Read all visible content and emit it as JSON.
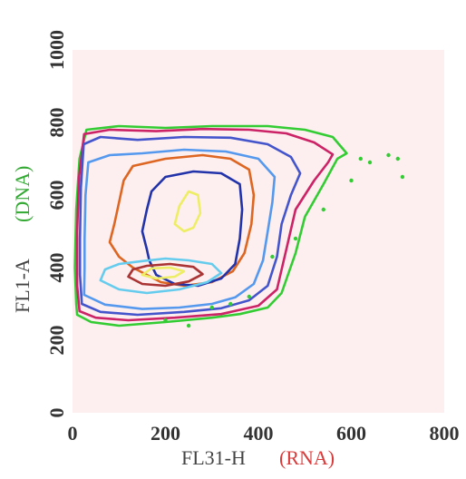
{
  "chart_data": {
    "type": "contour",
    "xlabel": "FL31-H",
    "xlabel_paren": "(RNA)",
    "ylabel": "FL1-A",
    "ylabel_paren": "(DNA)",
    "xlim": [
      0,
      800
    ],
    "ylim": [
      0,
      1000
    ],
    "xticks": [
      "0",
      "200",
      "400",
      "600",
      "800"
    ],
    "yticks": [
      "0",
      "200",
      "400",
      "600",
      "800",
      "1000"
    ],
    "background": "#fdeff0",
    "grid": false,
    "series": [
      {
        "color": "#33cc33",
        "points": [
          [
            10,
            270
          ],
          [
            40,
            250
          ],
          [
            100,
            240
          ],
          [
            200,
            250
          ],
          [
            300,
            262
          ],
          [
            360,
            272
          ],
          [
            420,
            290
          ],
          [
            450,
            330
          ],
          [
            480,
            440
          ],
          [
            500,
            540
          ],
          [
            540,
            630
          ],
          [
            570,
            700
          ],
          [
            590,
            715
          ],
          [
            560,
            760
          ],
          [
            500,
            780
          ],
          [
            420,
            790
          ],
          [
            300,
            790
          ],
          [
            200,
            785
          ],
          [
            100,
            790
          ],
          [
            30,
            780
          ],
          [
            15,
            700
          ],
          [
            8,
            560
          ],
          [
            5,
            400
          ],
          [
            8,
            300
          ]
        ]
      },
      {
        "color": "#cc2266",
        "points": [
          [
            15,
            280
          ],
          [
            50,
            262
          ],
          [
            120,
            255
          ],
          [
            220,
            262
          ],
          [
            320,
            272
          ],
          [
            400,
            295
          ],
          [
            440,
            340
          ],
          [
            460,
            450
          ],
          [
            480,
            560
          ],
          [
            520,
            640
          ],
          [
            550,
            690
          ],
          [
            560,
            712
          ],
          [
            520,
            745
          ],
          [
            460,
            770
          ],
          [
            380,
            780
          ],
          [
            280,
            782
          ],
          [
            180,
            776
          ],
          [
            80,
            780
          ],
          [
            25,
            768
          ],
          [
            14,
            650
          ],
          [
            10,
            500
          ],
          [
            10,
            350
          ]
        ]
      },
      {
        "color": "#4455cc",
        "points": [
          [
            20,
            300
          ],
          [
            60,
            278
          ],
          [
            140,
            270
          ],
          [
            240,
            278
          ],
          [
            320,
            288
          ],
          [
            380,
            310
          ],
          [
            420,
            350
          ],
          [
            440,
            430
          ],
          [
            450,
            520
          ],
          [
            470,
            600
          ],
          [
            490,
            660
          ],
          [
            470,
            705
          ],
          [
            420,
            740
          ],
          [
            340,
            758
          ],
          [
            240,
            760
          ],
          [
            140,
            752
          ],
          [
            60,
            760
          ],
          [
            24,
            740
          ],
          [
            18,
            620
          ],
          [
            16,
            480
          ],
          [
            16,
            380
          ]
        ]
      },
      {
        "color": "#5599ee",
        "points": [
          [
            25,
            325
          ],
          [
            70,
            298
          ],
          [
            150,
            286
          ],
          [
            230,
            290
          ],
          [
            300,
            300
          ],
          [
            350,
            318
          ],
          [
            390,
            355
          ],
          [
            410,
            420
          ],
          [
            420,
            500
          ],
          [
            430,
            580
          ],
          [
            435,
            650
          ],
          [
            400,
            700
          ],
          [
            330,
            720
          ],
          [
            240,
            725
          ],
          [
            150,
            715
          ],
          [
            80,
            710
          ],
          [
            34,
            690
          ],
          [
            28,
            600
          ],
          [
            26,
            480
          ],
          [
            26,
            400
          ]
        ]
      },
      {
        "color": "#dd6622",
        "points": [
          [
            130,
            400
          ],
          [
            100,
            430
          ],
          [
            80,
            470
          ],
          [
            90,
            520
          ],
          [
            100,
            580
          ],
          [
            110,
            640
          ],
          [
            130,
            680
          ],
          [
            200,
            700
          ],
          [
            280,
            710
          ],
          [
            340,
            700
          ],
          [
            380,
            670
          ],
          [
            390,
            600
          ],
          [
            385,
            520
          ],
          [
            370,
            440
          ],
          [
            345,
            390
          ],
          [
            300,
            360
          ],
          [
            240,
            350
          ],
          [
            190,
            360
          ]
        ]
      },
      {
        "color": "#2233aa",
        "points": [
          [
            160,
            450
          ],
          [
            150,
            500
          ],
          [
            160,
            560
          ],
          [
            170,
            610
          ],
          [
            200,
            650
          ],
          [
            260,
            665
          ],
          [
            320,
            660
          ],
          [
            360,
            630
          ],
          [
            365,
            560
          ],
          [
            360,
            480
          ],
          [
            350,
            410
          ],
          [
            320,
            370
          ],
          [
            270,
            350
          ],
          [
            220,
            355
          ],
          [
            180,
            380
          ],
          [
            165,
            420
          ]
        ]
      },
      {
        "color": "#66ccee",
        "points": [
          [
            60,
            365
          ],
          [
            100,
            340
          ],
          [
            160,
            330
          ],
          [
            230,
            340
          ],
          [
            290,
            360
          ],
          [
            320,
            385
          ],
          [
            300,
            410
          ],
          [
            250,
            420
          ],
          [
            200,
            425
          ],
          [
            150,
            418
          ],
          [
            100,
            410
          ],
          [
            70,
            395
          ]
        ]
      },
      {
        "color": "#aa3333",
        "points": [
          [
            120,
            375
          ],
          [
            150,
            355
          ],
          [
            200,
            350
          ],
          [
            250,
            362
          ],
          [
            280,
            382
          ],
          [
            260,
            402
          ],
          [
            210,
            410
          ],
          [
            160,
            405
          ],
          [
            130,
            395
          ]
        ]
      },
      {
        "color": "#eeee66",
        "points": [
          [
            220,
            520
          ],
          [
            230,
            570
          ],
          [
            250,
            610
          ],
          [
            270,
            600
          ],
          [
            275,
            550
          ],
          [
            260,
            510
          ],
          [
            240,
            500
          ]
        ]
      },
      {
        "color": "#eeee66",
        "points": [
          [
            150,
            380
          ],
          [
            180,
            370
          ],
          [
            220,
            375
          ],
          [
            240,
            390
          ],
          [
            210,
            400
          ],
          [
            170,
            398
          ]
        ]
      }
    ],
    "scatter": [
      {
        "color": "#33cc33",
        "points": [
          [
            620,
            700
          ],
          [
            640,
            690
          ],
          [
            680,
            710
          ],
          [
            700,
            700
          ],
          [
            710,
            650
          ],
          [
            540,
            560
          ],
          [
            480,
            480
          ],
          [
            430,
            430
          ],
          [
            380,
            320
          ],
          [
            340,
            300
          ],
          [
            300,
            290
          ],
          [
            200,
            255
          ],
          [
            250,
            240
          ],
          [
            600,
            640
          ]
        ]
      }
    ]
  }
}
